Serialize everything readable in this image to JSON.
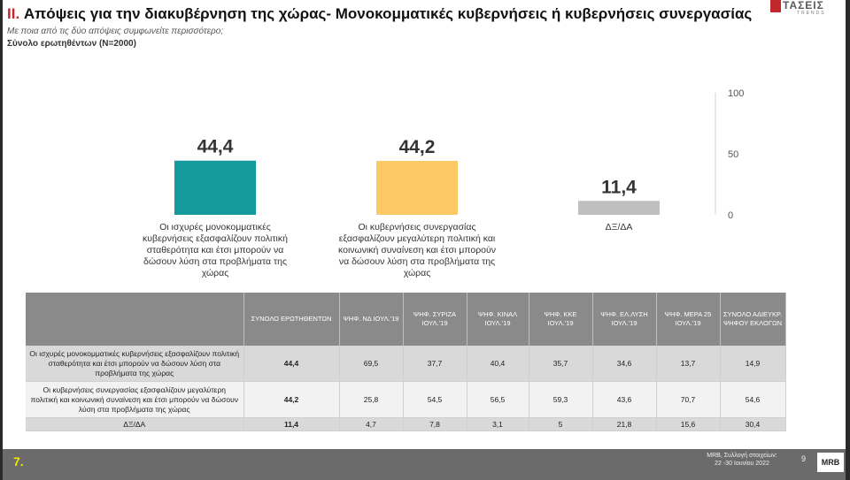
{
  "header": {
    "title_num": "II.",
    "title_text": "Απόψεις για την διακυβέρνηση της χώρας- Μονοκομματικές κυβερνήσεις ή κυβερνήσεις συνεργασίας",
    "subtitle": "Με ποια από τις δύο απόψεις συμφωνείτε περισσότερο;",
    "base": "Σύνολο ερωτηθέντων (N=2000)"
  },
  "logo": {
    "text": "ΤΑΣΕΙΣ",
    "sub": "TRENDS"
  },
  "chart_data": {
    "type": "bar",
    "categories": [
      "Οι ισχυρές μονοκομματικές κυβερνήσεις εξασφαλίζουν πολιτική σταθερότητα και έτσι μπορούν να δώσουν λύση στα προβλήματα της χώρας",
      "Οι κυβερνήσεις συνεργασίας εξασφαλίζουν μεγαλύτερη πολιτική και κοινωνική συναίνεση και έτσι μπορούν να δώσουν λύση στα προβλήματα της χώρας",
      "ΔΞ/ΔΑ"
    ],
    "values": [
      44.4,
      44.2,
      11.4
    ],
    "value_labels": [
      "44,4",
      "44,2",
      "11,4"
    ],
    "colors": [
      "#159a9c",
      "#fdc965",
      "#bfbfbf"
    ],
    "ylim": [
      0,
      100
    ],
    "yticks": [
      0,
      50,
      100
    ],
    "ytick_labels": [
      "0",
      "50",
      "100"
    ],
    "title": "",
    "xlabel": "",
    "ylabel": ""
  },
  "table": {
    "headers": [
      "",
      "ΣΥΝΟΛΟ ΕΡΩΤΗΘΕΝΤΩΝ",
      "ΨΗΦ. ΝΔ ΙΟΥΛ.'19",
      "ΨΗΦ. ΣΥΡΙΖΑ ΙΟΥΛ.'19",
      "ΨΗΦ. ΚΙΝΑΛ ΙΟΥΛ.'19",
      "ΨΗΦ. ΚΚΕ ΙΟΥΛ.'19",
      "ΨΗΦ. ΕΛ.ΛΥΣΗ ΙΟΥΛ.'19",
      "ΨΗΦ. ΜΕΡΑ 25 ΙΟΥΛ.'19",
      "ΣΥΝΟΛΟ ΑΔΙΕΥΚΡ. ΨΗΦΟΥ ΕΚΛΟΓΩΝ"
    ],
    "rows": [
      [
        "Οι ισχυρές μονοκομματικές κυβερνήσεις εξασφαλίζουν πολιτική σταθερότητα και έτσι μπορούν να δώσουν λύση στα προβλήματα της χώρας",
        "44,4",
        "69,5",
        "37,7",
        "40,4",
        "35,7",
        "34,6",
        "13,7",
        "14,9"
      ],
      [
        "Οι κυβερνήσεις συνεργασίας εξασφαλίζουν μεγαλύτερη πολιτική και κοινωνική συναίνεση και έτσι μπορούν να δώσουν λύση στα προβλήματα της χώρας",
        "44,2",
        "25,8",
        "54,5",
        "56,5",
        "59,3",
        "43,6",
        "70,7",
        "54,6"
      ],
      [
        "ΔΞ/ΔΑ",
        "11,4",
        "4,7",
        "7,8",
        "3,1",
        "5",
        "21,8",
        "15,6",
        "30,4"
      ]
    ]
  },
  "footer": {
    "page_label": "7.",
    "source_line1": "MRB, Συλλογή στοιχείων:",
    "source_line2": "22 -30 Ιουνίου 2022",
    "slide_number": "9",
    "brand": "MRB"
  }
}
